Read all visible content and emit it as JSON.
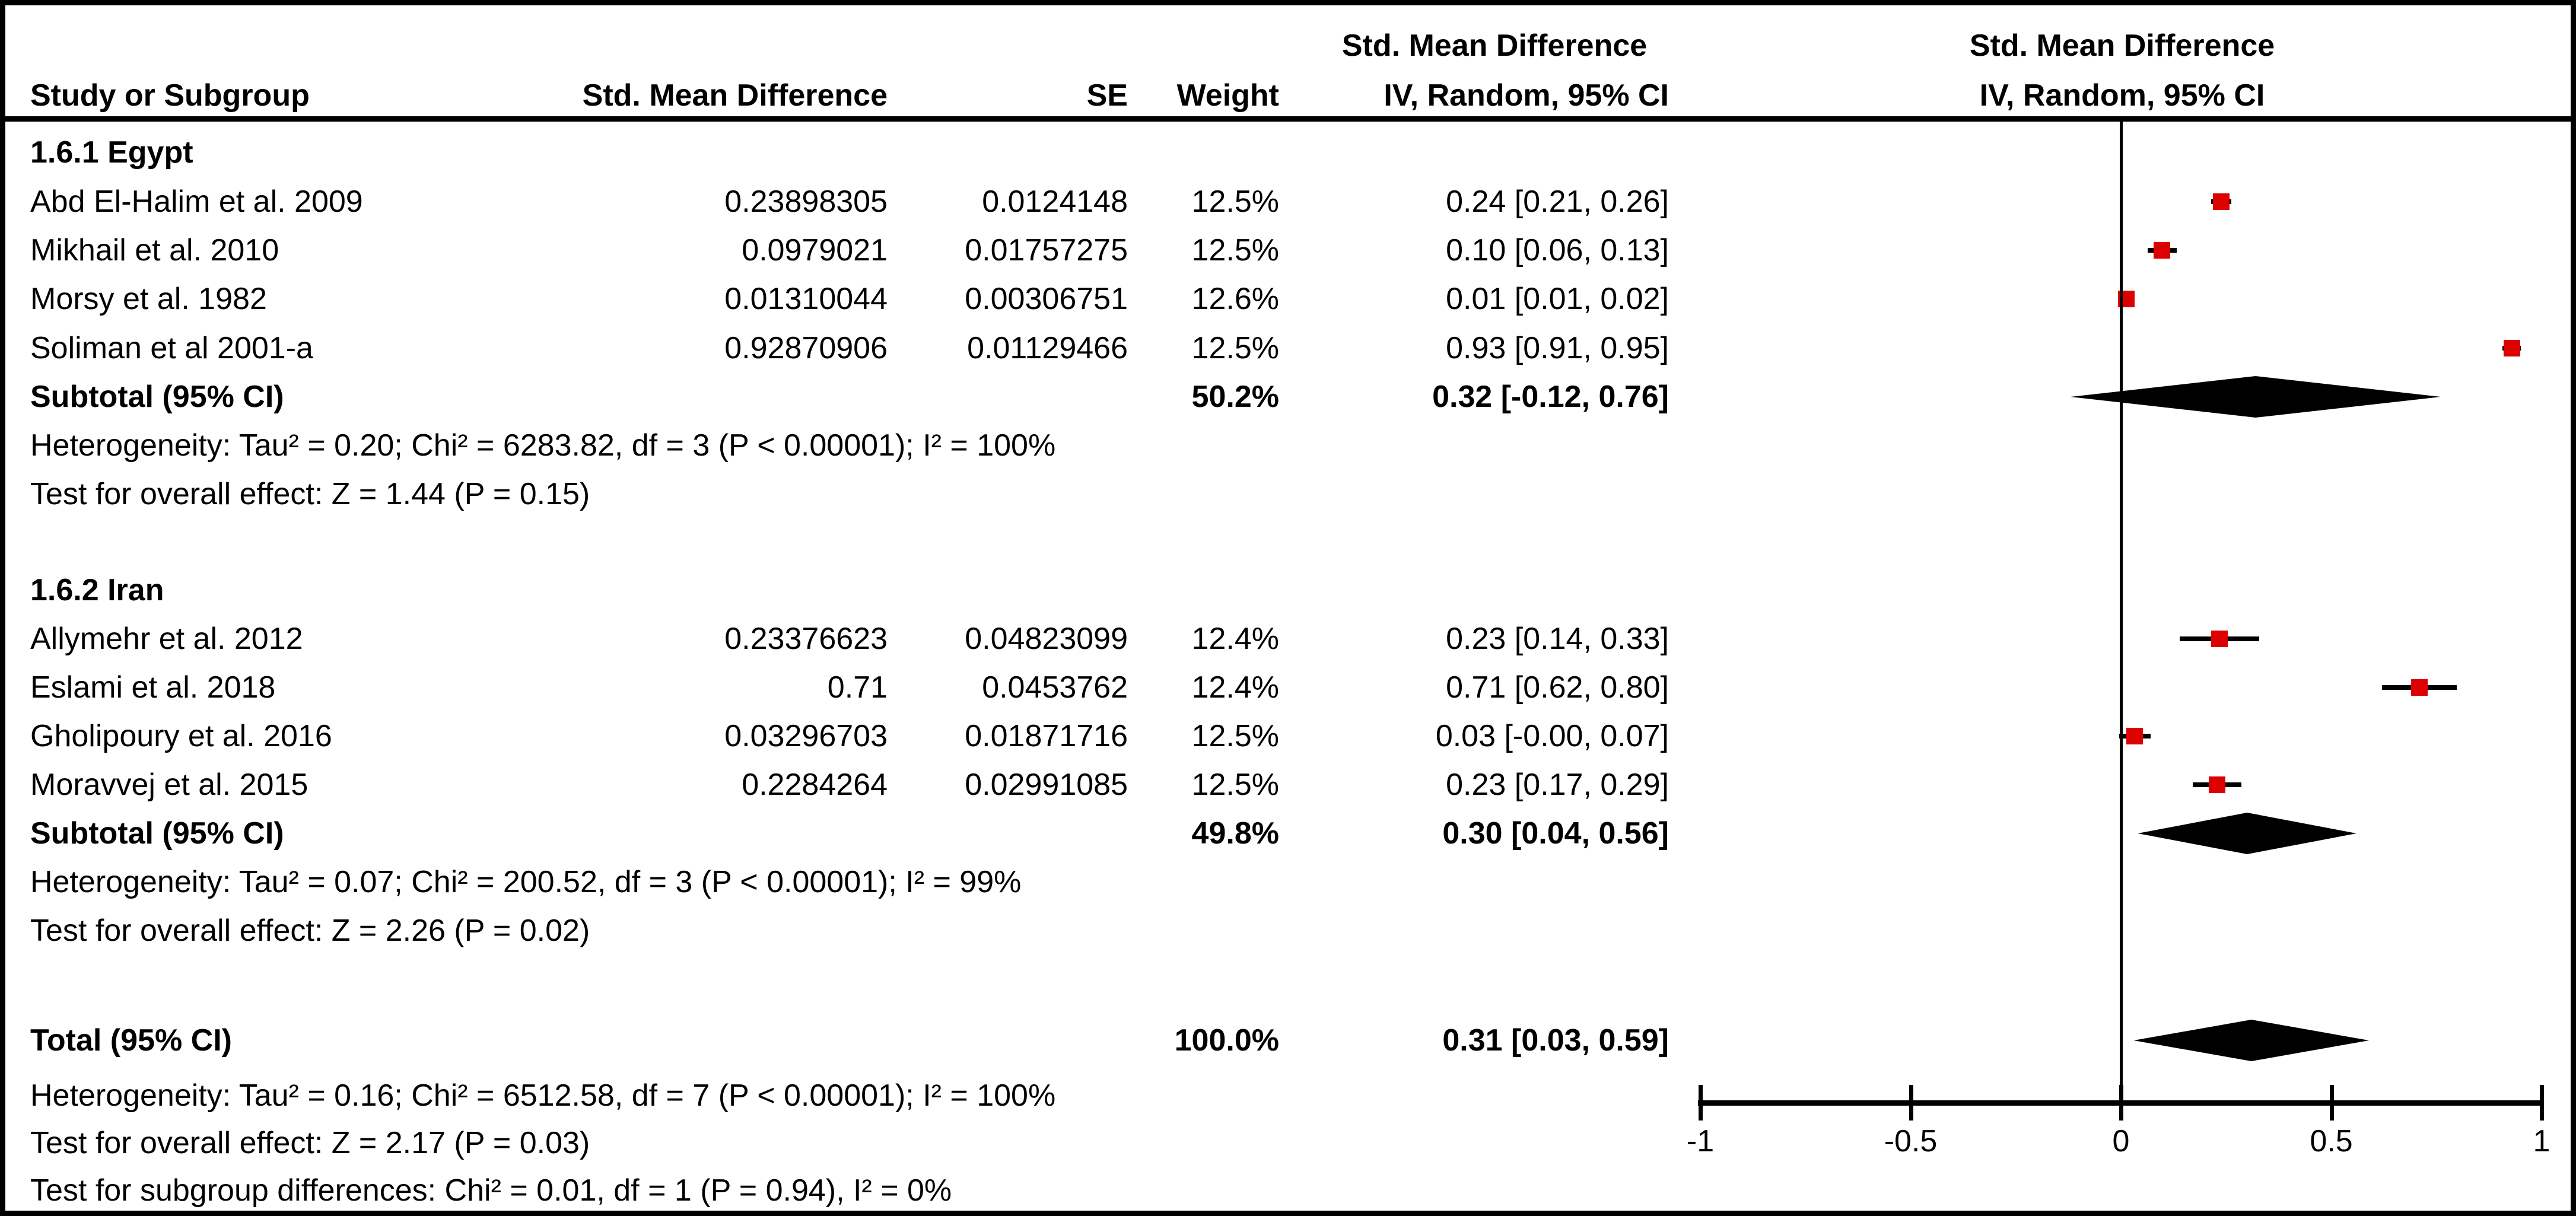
{
  "headers": {
    "effect_col_line1": "Std. Mean Difference",
    "study": "Study or Subgroup",
    "smd": "Std. Mean Difference",
    "se": "SE",
    "weight": "Weight",
    "ci": "IV, Random, 95% CI",
    "plot_line1": "Std. Mean Difference",
    "plot_line2": "IV, Random, 95% CI"
  },
  "colors": {
    "marker_red": "#dd0000",
    "line_black": "#000000"
  },
  "chart_data": {
    "type": "forest",
    "effect_measure": "Std. Mean Difference",
    "model": "IV, Random, 95% CI",
    "xlim": [
      -1,
      1
    ],
    "axis_ticks": [
      {
        "value": -1,
        "label": "-1"
      },
      {
        "value": -0.5,
        "label": "-0.5"
      },
      {
        "value": 0,
        "label": "0"
      },
      {
        "value": 0.5,
        "label": "0.5"
      },
      {
        "value": 1,
        "label": "1"
      }
    ],
    "subgroups": [
      {
        "label": "1.6.1 Egypt",
        "studies": [
          {
            "name": "Abd El-Halim et al. 2009",
            "smd": "0.23898305",
            "se": "0.0124148",
            "weight": "12.5%",
            "ci_text": "0.24 [0.21, 0.26]",
            "est": 0.239,
            "lo": 0.215,
            "hi": 0.263
          },
          {
            "name": "Mikhail et al. 2010",
            "smd": "0.0979021",
            "se": "0.01757275",
            "weight": "12.5%",
            "ci_text": "0.10 [0.06, 0.13]",
            "est": 0.098,
            "lo": 0.064,
            "hi": 0.132
          },
          {
            "name": "Morsy et al. 1982",
            "smd": "0.01310044",
            "se": "0.00306751",
            "weight": "12.6%",
            "ci_text": "0.01 [0.01, 0.02]",
            "est": 0.013,
            "lo": 0.007,
            "hi": 0.019
          },
          {
            "name": "Soliman et al 2001-a",
            "smd": "0.92870906",
            "se": "0.01129466",
            "weight": "12.5%",
            "ci_text": "0.93 [0.91, 0.95]",
            "est": 0.929,
            "lo": 0.907,
            "hi": 0.951
          }
        ],
        "subtotal": {
          "label": "Subtotal (95% CI)",
          "weight": "50.2%",
          "ci_text": "0.32 [-0.12, 0.76]",
          "est": 0.32,
          "lo": -0.12,
          "hi": 0.76
        },
        "heterogeneity": "Heterogeneity: Tau² = 0.20; Chi² = 6283.82, df = 3 (P < 0.00001); I² = 100%",
        "overall_effect": "Test for overall effect: Z = 1.44 (P = 0.15)"
      },
      {
        "label": "1.6.2 Iran",
        "studies": [
          {
            "name": "Allymehr et al. 2012",
            "smd": "0.23376623",
            "se": "0.04823099",
            "weight": "12.4%",
            "ci_text": "0.23 [0.14, 0.33]",
            "est": 0.234,
            "lo": 0.139,
            "hi": 0.328
          },
          {
            "name": "Eslami et al. 2018",
            "smd": "0.71",
            "se": "0.0453762",
            "weight": "12.4%",
            "ci_text": "0.71 [0.62, 0.80]",
            "est": 0.71,
            "lo": 0.621,
            "hi": 0.799
          },
          {
            "name": "Gholipoury et al. 2016",
            "smd": "0.03296703",
            "se": "0.01871716",
            "weight": "12.5%",
            "ci_text": "0.03 [-0.00, 0.07]",
            "est": 0.033,
            "lo": -0.004,
            "hi": 0.07
          },
          {
            "name": "Moravvej et al. 2015",
            "smd": "0.2284264",
            "se": "0.02991085",
            "weight": "12.5%",
            "ci_text": "0.23 [0.17, 0.29]",
            "est": 0.228,
            "lo": 0.17,
            "hi": 0.287
          }
        ],
        "subtotal": {
          "label": "Subtotal (95% CI)",
          "weight": "49.8%",
          "ci_text": "0.30 [0.04, 0.56]",
          "est": 0.3,
          "lo": 0.04,
          "hi": 0.56
        },
        "heterogeneity": "Heterogeneity: Tau² = 0.07; Chi² = 200.52, df = 3 (P < 0.00001); I² = 99%",
        "overall_effect": "Test for overall effect: Z = 2.26 (P = 0.02)"
      }
    ],
    "total": {
      "label": "Total (95% CI)",
      "weight": "100.0%",
      "ci_text": "0.31 [0.03, 0.59]",
      "est": 0.31,
      "lo": 0.03,
      "hi": 0.59
    },
    "footer": [
      "Heterogeneity: Tau² = 0.16; Chi² = 6512.58, df = 7 (P < 0.00001); I² = 100%",
      "Test for overall effect: Z = 2.17 (P = 0.03)",
      "Test for subgroup differences: Chi² = 0.01, df = 1 (P = 0.94), I² = 0%"
    ]
  }
}
